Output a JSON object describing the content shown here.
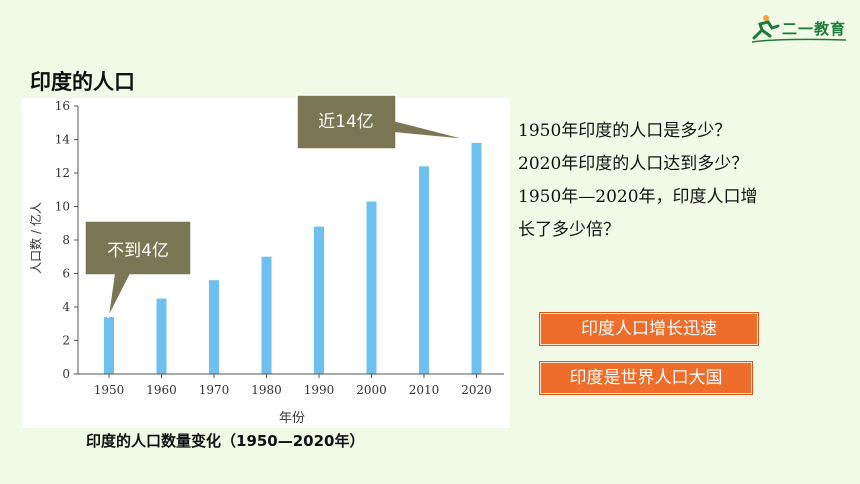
{
  "logo": {
    "text": "二一教育"
  },
  "slide_title": "印度的人口",
  "caption": "印度的人口数量变化（1950—2020年）",
  "callouts": [
    {
      "text": "近14亿"
    },
    {
      "text": "不到4亿"
    }
  ],
  "questions": [
    "1950年印度的人口是多少？",
    "2020年印度的人口达到多少？",
    "1950年—2020年，印度人口增",
    "长了多少倍？"
  ],
  "tags": [
    "印度人口增长迅速",
    "印度是世界人口大国"
  ],
  "colors": {
    "bar": "#6ec0f0",
    "callout_fill": "#7a7653",
    "tag": "#ee6d2a",
    "background": "#f0fae6"
  },
  "chart_data": {
    "type": "bar",
    "categories": [
      "1950",
      "1960",
      "1970",
      "1980",
      "1990",
      "2000",
      "2010",
      "2020"
    ],
    "values": [
      3.4,
      4.5,
      5.6,
      7.0,
      8.8,
      10.3,
      12.4,
      13.8
    ],
    "title": "",
    "xlabel": "年份",
    "ylabel": "人口数 / 亿人",
    "ylim": [
      0,
      16
    ],
    "yticks": [
      "0",
      "2",
      "4",
      "6",
      "8",
      "10",
      "12",
      "14",
      "16"
    ]
  }
}
